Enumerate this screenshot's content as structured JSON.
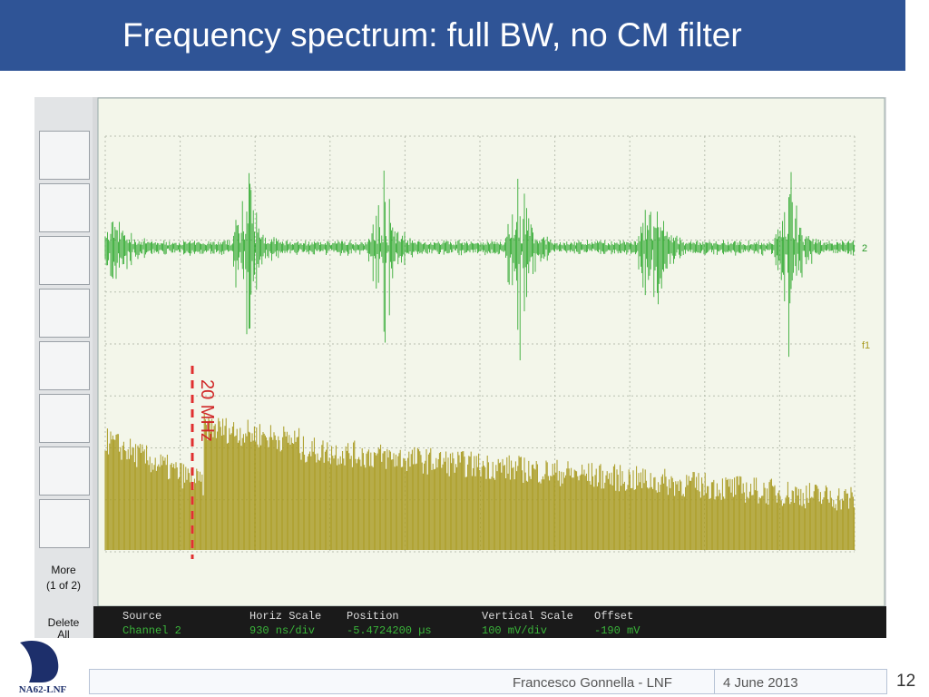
{
  "header": {
    "title": "Frequency spectrum: full BW, no CM filter"
  },
  "scope": {
    "annotation": "20 MHz",
    "channel_markers": [
      "2",
      "f1"
    ],
    "menu": {
      "more": "More",
      "more_page": "(1 of 2)",
      "delete": "Delete",
      "delete_sub": "All"
    },
    "status": [
      {
        "label": "Source",
        "value": "Channel 2"
      },
      {
        "label": "Horiz Scale",
        "value": "930 ns/div"
      },
      {
        "label": "Position",
        "value": "-5.4724200 µs"
      },
      {
        "label": "Vertical Scale",
        "value": "100 mV/div"
      },
      {
        "label": "Offset",
        "value": "-190 mV"
      }
    ]
  },
  "footer": {
    "author": "Francesco Gonnella - LNF",
    "date": "4 June 2013",
    "page": "12",
    "logo": "NA62-LNF"
  }
}
